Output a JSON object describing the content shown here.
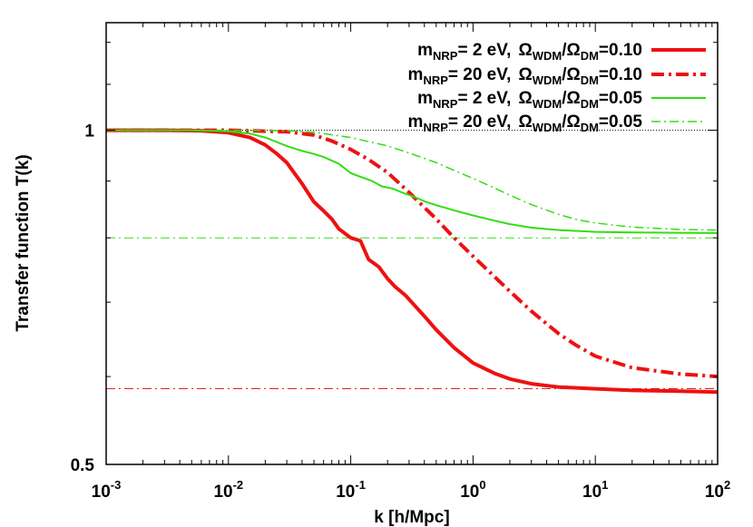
{
  "chart_data": {
    "type": "line",
    "xscale": "log",
    "yscale": "log",
    "xlim": [
      0.001,
      100
    ],
    "ylim": [
      0.5,
      1.25
    ],
    "xlabel": "k [h/Mpc]",
    "ylabel": "Transfer function T(k)",
    "grid": false,
    "legend_position": "top-right",
    "x_ticks": [
      {
        "value": 0.001,
        "base": "10",
        "exp": "-3"
      },
      {
        "value": 0.01,
        "base": "10",
        "exp": "-2"
      },
      {
        "value": 0.1,
        "base": "10",
        "exp": "-1"
      },
      {
        "value": 1,
        "base": "10",
        "exp": "0"
      },
      {
        "value": 10,
        "base": "10",
        "exp": "1"
      },
      {
        "value": 100,
        "base": "10",
        "exp": "2"
      }
    ],
    "y_ticks": [
      {
        "value": 1,
        "label": "1"
      },
      {
        "value": 0.5,
        "label": "0.5"
      }
    ],
    "reference_lines": [
      {
        "y": 1.0,
        "color": "#000000",
        "style": "dotted"
      },
      {
        "y": 0.8,
        "color": "#33dd11",
        "style": "dashdot"
      },
      {
        "y": 0.585,
        "color": "#dd2222",
        "style": "dashdot"
      }
    ],
    "series": [
      {
        "legend": {
          "m": "m",
          "m_sub": "NRP",
          "m_val": "=   2 eV,",
          "o1": "Ω",
          "o1_sub": "WDM",
          "slash": "/",
          "o2": "Ω",
          "o2_sub": "DM",
          "ratio": "=0.10"
        },
        "color": "#ee1111",
        "style": "solid",
        "width": 4,
        "x": [
          0.001,
          0.003,
          0.006,
          0.01,
          0.015,
          0.02,
          0.025,
          0.03,
          0.04,
          0.05,
          0.06,
          0.07,
          0.08,
          0.1,
          0.12,
          0.14,
          0.17,
          0.2,
          0.23,
          0.28,
          0.33,
          0.4,
          0.5,
          0.7,
          1,
          1.5,
          2,
          3,
          5,
          10,
          20,
          50,
          100
        ],
        "y": [
          1.0,
          1.0,
          0.999,
          0.995,
          0.985,
          0.97,
          0.952,
          0.935,
          0.895,
          0.862,
          0.846,
          0.832,
          0.815,
          0.8,
          0.795,
          0.765,
          0.753,
          0.735,
          0.723,
          0.71,
          0.696,
          0.68,
          0.661,
          0.637,
          0.617,
          0.604,
          0.597,
          0.591,
          0.587,
          0.585,
          0.583,
          0.582,
          0.581
        ]
      },
      {
        "legend": {
          "m": "m",
          "m_sub": "NRP",
          "m_val": "= 20 eV,",
          "o1": "Ω",
          "o1_sub": "WDM",
          "slash": "/",
          "o2": "Ω",
          "o2_sub": "DM",
          "ratio": "=0.10"
        },
        "color": "#ee1111",
        "style": "dashdot",
        "width": 4,
        "x": [
          0.001,
          0.01,
          0.03,
          0.05,
          0.07,
          0.1,
          0.14,
          0.2,
          0.3,
          0.5,
          0.7,
          1,
          1.5,
          2,
          3,
          5,
          7,
          10,
          20,
          50,
          100
        ],
        "y": [
          1.0,
          1.0,
          0.997,
          0.99,
          0.978,
          0.961,
          0.941,
          0.916,
          0.879,
          0.832,
          0.8,
          0.77,
          0.738,
          0.716,
          0.687,
          0.656,
          0.64,
          0.626,
          0.611,
          0.603,
          0.6
        ]
      },
      {
        "legend": {
          "m": "m",
          "m_sub": "NRP",
          "m_val": "=   2 eV,",
          "o1": "Ω",
          "o1_sub": "WDM",
          "slash": "/",
          "o2": "Ω",
          "o2_sub": "DM",
          "ratio": "=0.05"
        },
        "color": "#33dd11",
        "style": "solid",
        "width": 2,
        "x": [
          0.001,
          0.005,
          0.01,
          0.015,
          0.02,
          0.03,
          0.04,
          0.05,
          0.06,
          0.08,
          0.1,
          0.12,
          0.15,
          0.18,
          0.22,
          0.27,
          0.33,
          0.4,
          0.5,
          0.7,
          1,
          1.5,
          2,
          3,
          5,
          10,
          20,
          100
        ],
        "y": [
          1.0,
          1.0,
          0.998,
          0.993,
          0.985,
          0.968,
          0.958,
          0.952,
          0.946,
          0.933,
          0.915,
          0.908,
          0.9,
          0.89,
          0.886,
          0.878,
          0.871,
          0.863,
          0.856,
          0.847,
          0.838,
          0.829,
          0.823,
          0.817,
          0.813,
          0.81,
          0.809,
          0.808
        ]
      },
      {
        "legend": {
          "m": "m",
          "m_sub": "NRP",
          "m_val": "= 20 eV,",
          "o1": "Ω",
          "o1_sub": "WDM",
          "slash": "/",
          "o2": "Ω",
          "o2_sub": "DM",
          "ratio": "=0.05"
        },
        "color": "#33dd11",
        "style": "dashdot",
        "width": 1.5,
        "x": [
          0.001,
          0.01,
          0.03,
          0.05,
          0.1,
          0.2,
          0.3,
          0.5,
          0.7,
          1,
          1.5,
          2,
          3,
          5,
          7,
          10,
          20,
          50,
          100
        ],
        "y": [
          1.0,
          1.0,
          0.999,
          0.996,
          0.985,
          0.968,
          0.954,
          0.935,
          0.92,
          0.905,
          0.887,
          0.874,
          0.857,
          0.84,
          0.831,
          0.825,
          0.818,
          0.814,
          0.813
        ]
      }
    ]
  }
}
